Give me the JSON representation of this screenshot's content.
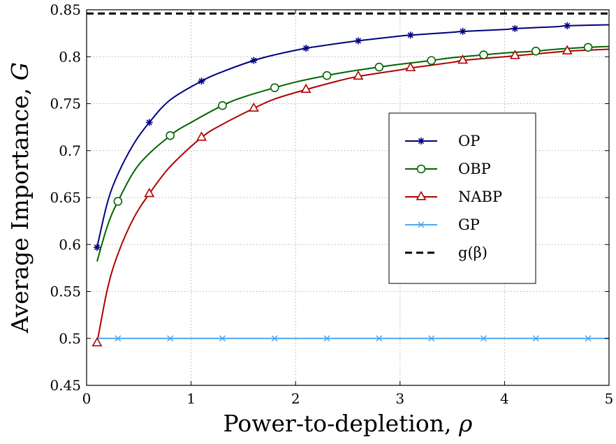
{
  "chart_data": {
    "type": "line",
    "xlabel": "Power-to-depletion,",
    "xlabel_symbol": "ρ",
    "ylabel": "Average Importance,",
    "ylabel_symbol": "G",
    "xlim": [
      0,
      5
    ],
    "ylim": [
      0.45,
      0.85
    ],
    "x_ticks": [
      0,
      1,
      2,
      3,
      4,
      5
    ],
    "x_tick_labels": [
      "0",
      "1",
      "2",
      "3",
      "4",
      "5"
    ],
    "y_ticks": [
      0.45,
      0.5,
      0.55,
      0.6,
      0.65,
      0.7,
      0.75,
      0.8,
      0.85
    ],
    "y_tick_labels": [
      "0.45",
      "0.5",
      "0.55",
      "0.6",
      "0.65",
      "0.7",
      "0.75",
      "0.8",
      "0.85"
    ],
    "grid": true,
    "legend_position": "center-right",
    "series": [
      {
        "name": "OP",
        "color": "#000080",
        "marker": "asterisk",
        "line": "solid",
        "x": [
          0.1,
          0.2,
          0.3,
          0.45,
          0.6,
          0.8,
          1.1,
          1.3,
          1.6,
          1.8,
          2.1,
          2.4,
          2.6,
          3.0,
          3.1,
          3.5,
          3.6,
          4.0,
          4.1,
          4.5,
          4.6,
          5.0
        ],
        "y": [
          0.597,
          0.645,
          0.675,
          0.707,
          0.73,
          0.754,
          0.774,
          0.784,
          0.796,
          0.802,
          0.809,
          0.814,
          0.817,
          0.822,
          0.823,
          0.826,
          0.827,
          0.829,
          0.83,
          0.832,
          0.833,
          0.834
        ],
        "marker_x": [
          0.1,
          0.6,
          1.1,
          1.6,
          2.1,
          2.6,
          3.1,
          3.6,
          4.1,
          4.6
        ]
      },
      {
        "name": "OBP",
        "color": "#006400",
        "marker": "circle",
        "line": "solid",
        "x": [
          0.1,
          0.2,
          0.3,
          0.5,
          0.8,
          1.0,
          1.3,
          1.5,
          1.8,
          2.0,
          2.3,
          2.5,
          2.8,
          3.0,
          3.3,
          3.5,
          3.8,
          4.0,
          4.3,
          4.5,
          4.8,
          5.0
        ],
        "y": [
          0.582,
          0.62,
          0.646,
          0.685,
          0.716,
          0.73,
          0.748,
          0.757,
          0.767,
          0.773,
          0.78,
          0.784,
          0.789,
          0.792,
          0.796,
          0.799,
          0.802,
          0.804,
          0.806,
          0.808,
          0.81,
          0.811
        ],
        "marker_x": [
          0.3,
          0.8,
          1.3,
          1.8,
          2.3,
          2.8,
          3.3,
          3.8,
          4.3,
          4.8
        ]
      },
      {
        "name": "NABP",
        "color": "#b00000",
        "marker": "triangle",
        "line": "solid",
        "x": [
          0.1,
          0.2,
          0.3,
          0.45,
          0.6,
          0.8,
          1.1,
          1.3,
          1.6,
          1.8,
          2.1,
          2.4,
          2.6,
          3.0,
          3.1,
          3.5,
          3.6,
          4.0,
          4.1,
          4.5,
          4.6,
          5.0
        ],
        "y": [
          0.495,
          0.553,
          0.59,
          0.628,
          0.654,
          0.683,
          0.714,
          0.728,
          0.745,
          0.755,
          0.765,
          0.774,
          0.779,
          0.786,
          0.788,
          0.794,
          0.796,
          0.8,
          0.801,
          0.805,
          0.806,
          0.808
        ],
        "marker_x": [
          0.1,
          0.6,
          1.1,
          1.6,
          2.1,
          2.6,
          3.1,
          3.6,
          4.1,
          4.6
        ]
      },
      {
        "name": "GP",
        "color": "#4da6f0",
        "marker": "x",
        "line": "solid",
        "x": [
          0.1,
          5.0
        ],
        "y": [
          0.5,
          0.5
        ],
        "marker_x": [
          0.3,
          0.8,
          1.3,
          1.8,
          2.3,
          2.8,
          3.3,
          3.8,
          4.3,
          4.8
        ]
      },
      {
        "name": "g(β)",
        "color": "#000000",
        "marker": "none",
        "line": "dashed",
        "x": [
          0.0,
          5.0
        ],
        "y": [
          0.846,
          0.846
        ],
        "marker_x": []
      }
    ]
  }
}
